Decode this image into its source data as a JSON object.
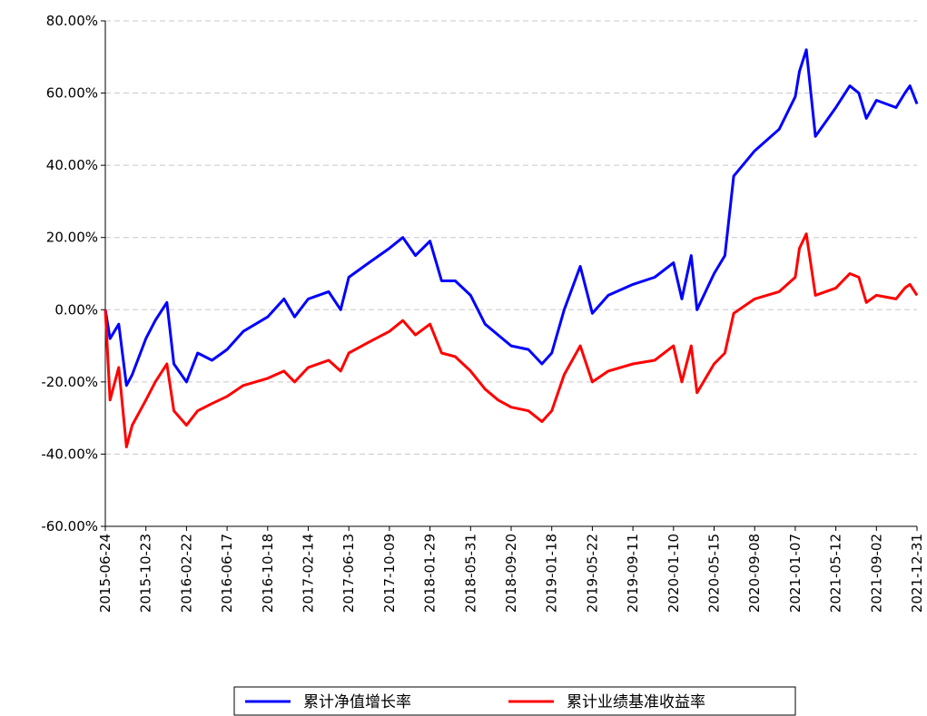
{
  "chart_data": {
    "type": "line",
    "x": [
      "2015-06-24",
      "2015-07-08",
      "2015-08-03",
      "2015-08-26",
      "2015-09-12",
      "2015-10-23",
      "2015-11-20",
      "2015-12-25",
      "2016-01-15",
      "2016-02-22",
      "2016-03-25",
      "2016-05-05",
      "2016-06-17",
      "2016-08-05",
      "2016-10-18",
      "2016-12-05",
      "2017-01-05",
      "2017-02-14",
      "2017-04-15",
      "2017-05-20",
      "2017-06-13",
      "2017-08-10",
      "2017-10-09",
      "2017-11-15",
      "2017-12-20",
      "2018-01-29",
      "2018-03-05",
      "2018-04-15",
      "2018-05-31",
      "2018-07-10",
      "2018-08-15",
      "2018-09-20",
      "2018-11-10",
      "2018-12-20",
      "2019-01-18",
      "2019-02-25",
      "2019-04-15",
      "2019-05-22",
      "2019-07-05",
      "2019-09-11",
      "2019-11-15",
      "2020-01-10",
      "2020-02-05",
      "2020-03-05",
      "2020-03-23",
      "2020-05-15",
      "2020-06-15",
      "2020-07-10",
      "2020-09-08",
      "2020-11-20",
      "2021-01-07",
      "2021-01-20",
      "2021-02-10",
      "2021-03-10",
      "2021-05-12",
      "2021-06-20",
      "2021-07-15",
      "2021-08-05",
      "2021-09-02",
      "2021-10-30",
      "2021-11-25",
      "2021-12-10",
      "2021-12-31"
    ],
    "series": [
      {
        "name": "累计净值增长率",
        "color": "#0000ff",
        "values": [
          0,
          -8,
          -4,
          -21,
          -18,
          -8,
          -3,
          2,
          -15,
          -20,
          -12,
          -14,
          -11,
          -6,
          -2,
          3,
          -2,
          3,
          5,
          0,
          9,
          13,
          17,
          20,
          15,
          19,
          8,
          8,
          4,
          -4,
          -7,
          -10,
          -11,
          -15,
          -12,
          0,
          12,
          -1,
          4,
          7,
          9,
          13,
          3,
          15,
          0,
          10,
          15,
          37,
          44,
          50,
          59,
          66,
          72,
          48,
          56,
          62,
          60,
          53,
          58,
          56,
          60,
          62,
          57
        ]
      },
      {
        "name": "累计业绩基准收益率",
        "color": "#ff0000",
        "values": [
          0,
          -25,
          -16,
          -38,
          -32,
          -25,
          -20,
          -15,
          -28,
          -32,
          -28,
          -26,
          -24,
          -21,
          -19,
          -17,
          -20,
          -16,
          -14,
          -17,
          -12,
          -9,
          -6,
          -3,
          -7,
          -4,
          -12,
          -13,
          -17,
          -22,
          -25,
          -27,
          -28,
          -31,
          -28,
          -18,
          -10,
          -20,
          -17,
          -15,
          -14,
          -10,
          -20,
          -10,
          -23,
          -15,
          -12,
          -1,
          3,
          5,
          9,
          17,
          21,
          4,
          6,
          10,
          9,
          2,
          4,
          3,
          6,
          7,
          4
        ]
      }
    ],
    "xlim": [
      "2015-06-24",
      "2021-12-31"
    ],
    "xticks": [
      "2015-06-24",
      "2015-10-23",
      "2016-02-22",
      "2016-06-17",
      "2016-10-18",
      "2017-02-14",
      "2017-06-13",
      "2017-10-09",
      "2018-01-29",
      "2018-05-31",
      "2018-09-20",
      "2019-01-18",
      "2019-05-22",
      "2019-09-11",
      "2020-01-10",
      "2020-05-15",
      "2020-09-08",
      "2021-01-07",
      "2021-05-12",
      "2021-09-02",
      "2021-12-31"
    ],
    "ylim": [
      -60,
      80
    ],
    "yticks": [
      {
        "value": -60,
        "label": "-60.00%"
      },
      {
        "value": -40,
        "label": "-40.00%"
      },
      {
        "value": -20,
        "label": "-20.00%"
      },
      {
        "value": 0,
        "label": "0.00%"
      },
      {
        "value": 20,
        "label": "20.00%"
      },
      {
        "value": 40,
        "label": "40.00%"
      },
      {
        "value": 60,
        "label": "60.00%"
      },
      {
        "value": 80,
        "label": "80.00%"
      }
    ],
    "grid": true,
    "legend": "bottom"
  }
}
